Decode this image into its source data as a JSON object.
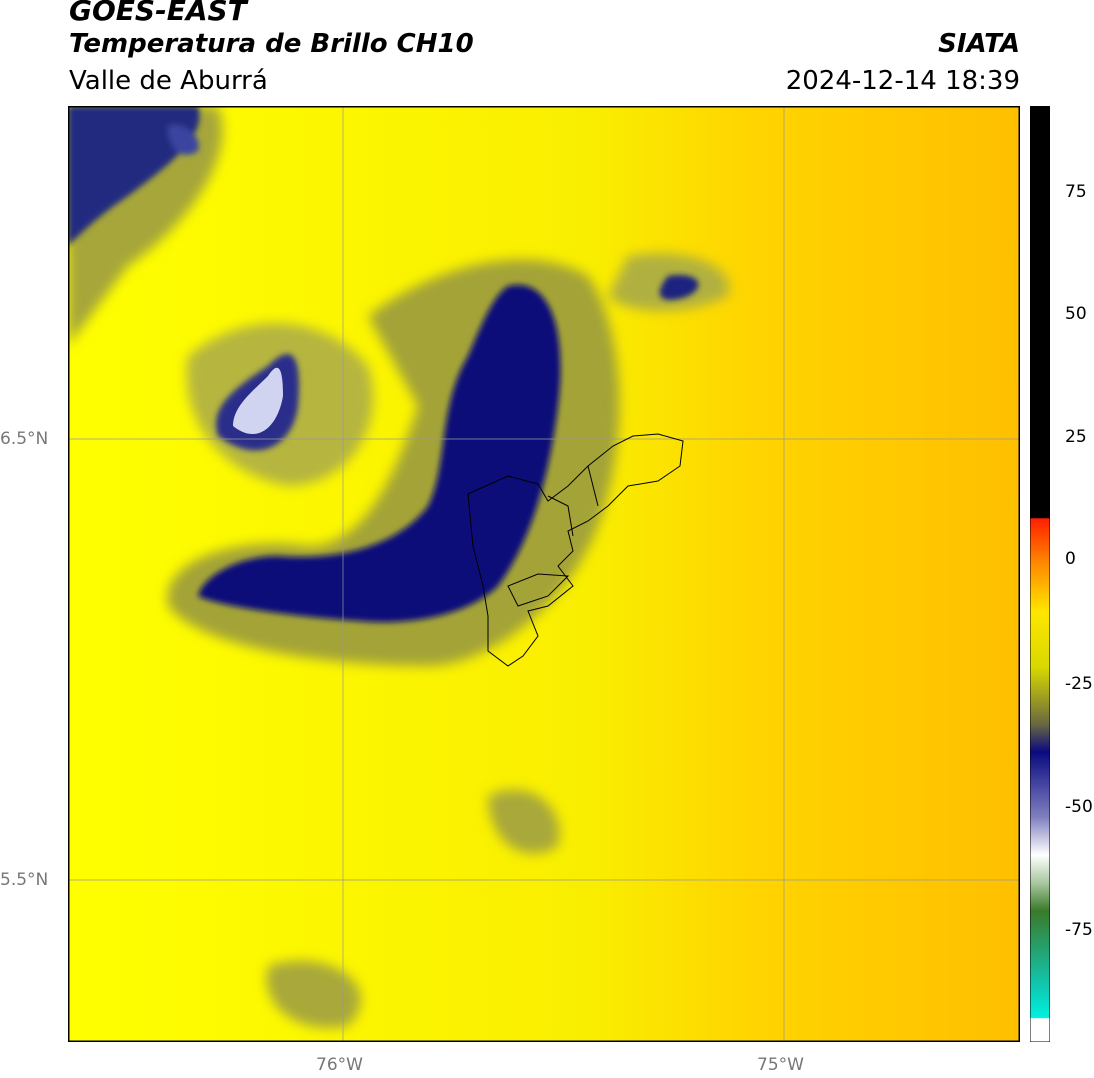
{
  "header": {
    "satellite": "GOES-EAST",
    "product": "Temperatura de Brillo CH10",
    "region": "Valle de Aburrá",
    "organization": "SIATA",
    "datetime": "2024-12-14 18:39"
  },
  "map": {
    "lat_labels": [
      "6.5°N",
      "5.5°N"
    ],
    "lon_labels": [
      "76°W",
      "75°W"
    ],
    "colors": {
      "background": "#f6e800",
      "warm": "#ffc400",
      "cold_cloud": "#0a0d80",
      "olive": "#8d8d30",
      "border": "#000000"
    }
  },
  "colorbar": {
    "ticks": [
      "75",
      "50",
      "25",
      "0",
      "-25",
      "-50",
      "-75"
    ],
    "colors": [
      "#000000",
      "#ff1a00",
      "#ff9800",
      "#ffe600",
      "#9a9a3a",
      "#0a0a80",
      "#ffffff",
      "#2e7d32",
      "#00e5d0"
    ]
  }
}
